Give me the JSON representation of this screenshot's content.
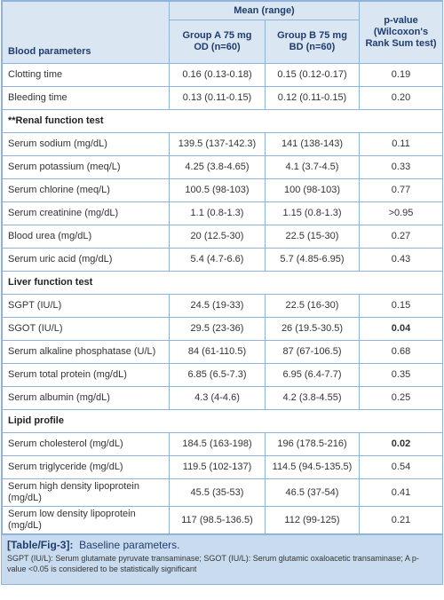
{
  "table": {
    "header": {
      "param": "Blood parameters",
      "mean": "Mean (range)",
      "pvalue": "p-value (Wilcoxon's Rank Sum test)",
      "groupA": "Group A 75 mg OD (n=60)",
      "groupB": "Group B 75 mg BD (n=60)"
    },
    "rows": [
      [
        "Clotting time",
        "0.16 (0.13-0.18)",
        "0.15 (0.12-0.17)",
        "0.19"
      ],
      [
        "Bleeding time",
        "0.13 (0.11-0.15)",
        "0.12 (0.11-0.15)",
        "0.20"
      ],
      [
        "**Renal function test"
      ],
      [
        "Serum sodium (mg/dL)",
        "139.5 (137-142.3)",
        "141 (138-143)",
        "0.11"
      ],
      [
        "Serum potassium (meq/L)",
        "4.25 (3.8-4.65)",
        "4.1 (3.7-4.5)",
        "0.33"
      ],
      [
        "Serum chlorine (meq/L)",
        "100.5 (98-103)",
        "100 (98-103)",
        "0.77"
      ],
      [
        "Serum creatinine (mg/dL)",
        "1.1 (0.8-1.3)",
        "1.15 (0.8-1.3)",
        ">0.95"
      ],
      [
        "Blood urea (mg/dL)",
        "20 (12.5-30)",
        "22.5 (15-30)",
        "0.27"
      ],
      [
        "Serum uric acid (mg/dL)",
        "5.4 (4.7-6.6)",
        "5.7 (4.85-6.95)",
        "0.43"
      ],
      [
        "Liver function test"
      ],
      [
        "SGPT (IU/L)",
        "24.5 (19-33)",
        "22.5 (16-30)",
        "0.15"
      ],
      [
        "SGOT (IU/L)",
        "29.5 (23-36)",
        "26 (19.5-30.5)",
        "0.04"
      ],
      [
        "Serum alkaline phosphatase (U/L)",
        "84 (61-110.5)",
        "87 (67-106.5)",
        "0.68"
      ],
      [
        "Serum total protein (mg/dL)",
        "6.85 (6.5-7.3)",
        "6.95 (6.4-7.7)",
        "0.35"
      ],
      [
        "Serum albumin (mg/dL)",
        "4.3 (4-4.6)",
        "4.2 (3.8-4.55)",
        "0.25"
      ],
      [
        "Lipid profile"
      ],
      [
        "Serum cholesterol (mg/dL)",
        "184.5 (163-198)",
        "196 (178.5-216)",
        "0.02"
      ],
      [
        "Serum triglyceride (mg/dL)",
        "119.5 (102-137)",
        "114.5 (94.5-135.5)",
        "0.54"
      ],
      [
        "Serum high density lipoprotein (mg/dL)",
        "45.5 (35-53)",
        "46.5 (37-54)",
        "0.41"
      ],
      [
        "Serum low density lipoprotein (mg/dL)",
        "117 (98.5-136.5)",
        "112 (99-125)",
        "0.21"
      ]
    ]
  },
  "caption": {
    "label": "[Table/Fig-3]:",
    "title": "Baseline parameters.",
    "note": "SGPT (IU/L): Serum glutamate pyruvate transaminase; SGOT (IU/L): Serum glutamic oxaloacetic transaminase; A p-value <0.05 is considered to be statistically significant"
  }
}
